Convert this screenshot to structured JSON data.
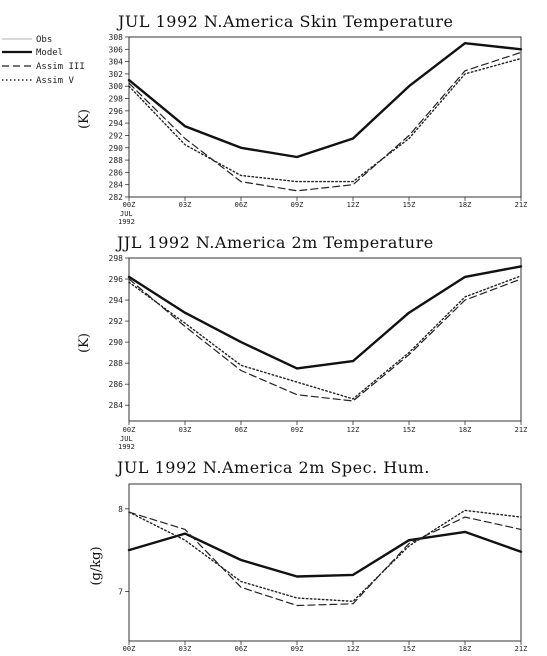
{
  "figure": {
    "legend": {
      "entries": [
        {
          "label": "Obs",
          "style": "thin"
        },
        {
          "label": "Model",
          "style": "thick"
        },
        {
          "label": "Assim III",
          "style": "dash"
        },
        {
          "label": "Assim V",
          "style": "dot"
        }
      ]
    },
    "x_date_suffix": [
      "JUL",
      "1992"
    ]
  },
  "chart_data": [
    {
      "type": "line",
      "title": "JUL 1992 N.America Skin Temperature",
      "ylabel": "(K)",
      "xlabel": "",
      "categories": [
        "00Z",
        "03Z",
        "06Z",
        "09Z",
        "12Z",
        "15Z",
        "18Z",
        "21Z"
      ],
      "ylim": [
        282,
        308
      ],
      "yticks": [
        282,
        284,
        286,
        288,
        290,
        292,
        294,
        296,
        298,
        300,
        302,
        304,
        306,
        308
      ],
      "series": [
        {
          "name": "Model",
          "style": "thick",
          "values": [
            301.0,
            293.5,
            290.0,
            288.5,
            291.5,
            300.0,
            307.0,
            306.0
          ]
        },
        {
          "name": "Assim III",
          "style": "dash",
          "values": [
            300.5,
            291.5,
            284.5,
            283.0,
            284.0,
            292.0,
            302.5,
            305.5
          ]
        },
        {
          "name": "Assim V",
          "style": "dot",
          "values": [
            300.0,
            290.5,
            285.5,
            284.5,
            284.5,
            291.5,
            302.0,
            304.5
          ]
        }
      ]
    },
    {
      "type": "line",
      "title": "JJL 1992 N.America 2m Temperature",
      "ylabel": "(K)",
      "xlabel": "",
      "categories": [
        "00Z",
        "03Z",
        "06Z",
        "09Z",
        "12Z",
        "15Z",
        "18Z",
        "21Z"
      ],
      "ylim": [
        282.5,
        298
      ],
      "yticks": [
        284,
        286,
        288,
        290,
        292,
        294,
        296,
        298
      ],
      "series": [
        {
          "name": "Model",
          "style": "thick",
          "values": [
            296.2,
            292.8,
            290.0,
            287.5,
            288.2,
            292.8,
            296.2,
            297.2
          ]
        },
        {
          "name": "Assim III",
          "style": "dash",
          "values": [
            296.0,
            291.5,
            287.3,
            285.0,
            284.4,
            288.8,
            294.0,
            296.0
          ]
        },
        {
          "name": "Assim V",
          "style": "dot",
          "values": [
            295.7,
            291.8,
            287.8,
            286.2,
            284.6,
            289.0,
            294.3,
            296.3
          ]
        }
      ]
    },
    {
      "type": "line",
      "title": "JUL 1992 N.America 2m Spec. Hum.",
      "ylabel": "(g/kg)",
      "xlabel": "",
      "categories": [
        "00Z",
        "03Z",
        "06Z",
        "09Z",
        "12Z",
        "15Z",
        "18Z",
        "21Z"
      ],
      "ylim": [
        6.4,
        8.3
      ],
      "yticks": [
        7,
        8
      ],
      "series": [
        {
          "name": "Model",
          "style": "thick",
          "values": [
            7.5,
            7.7,
            7.38,
            7.18,
            7.2,
            7.62,
            7.72,
            7.48
          ]
        },
        {
          "name": "Assim III",
          "style": "dash",
          "values": [
            7.96,
            7.75,
            7.05,
            6.83,
            6.85,
            7.58,
            7.9,
            7.75
          ]
        },
        {
          "name": "Assim V",
          "style": "dot",
          "values": [
            7.96,
            7.62,
            7.12,
            6.92,
            6.88,
            7.55,
            7.98,
            7.9
          ]
        }
      ]
    }
  ]
}
